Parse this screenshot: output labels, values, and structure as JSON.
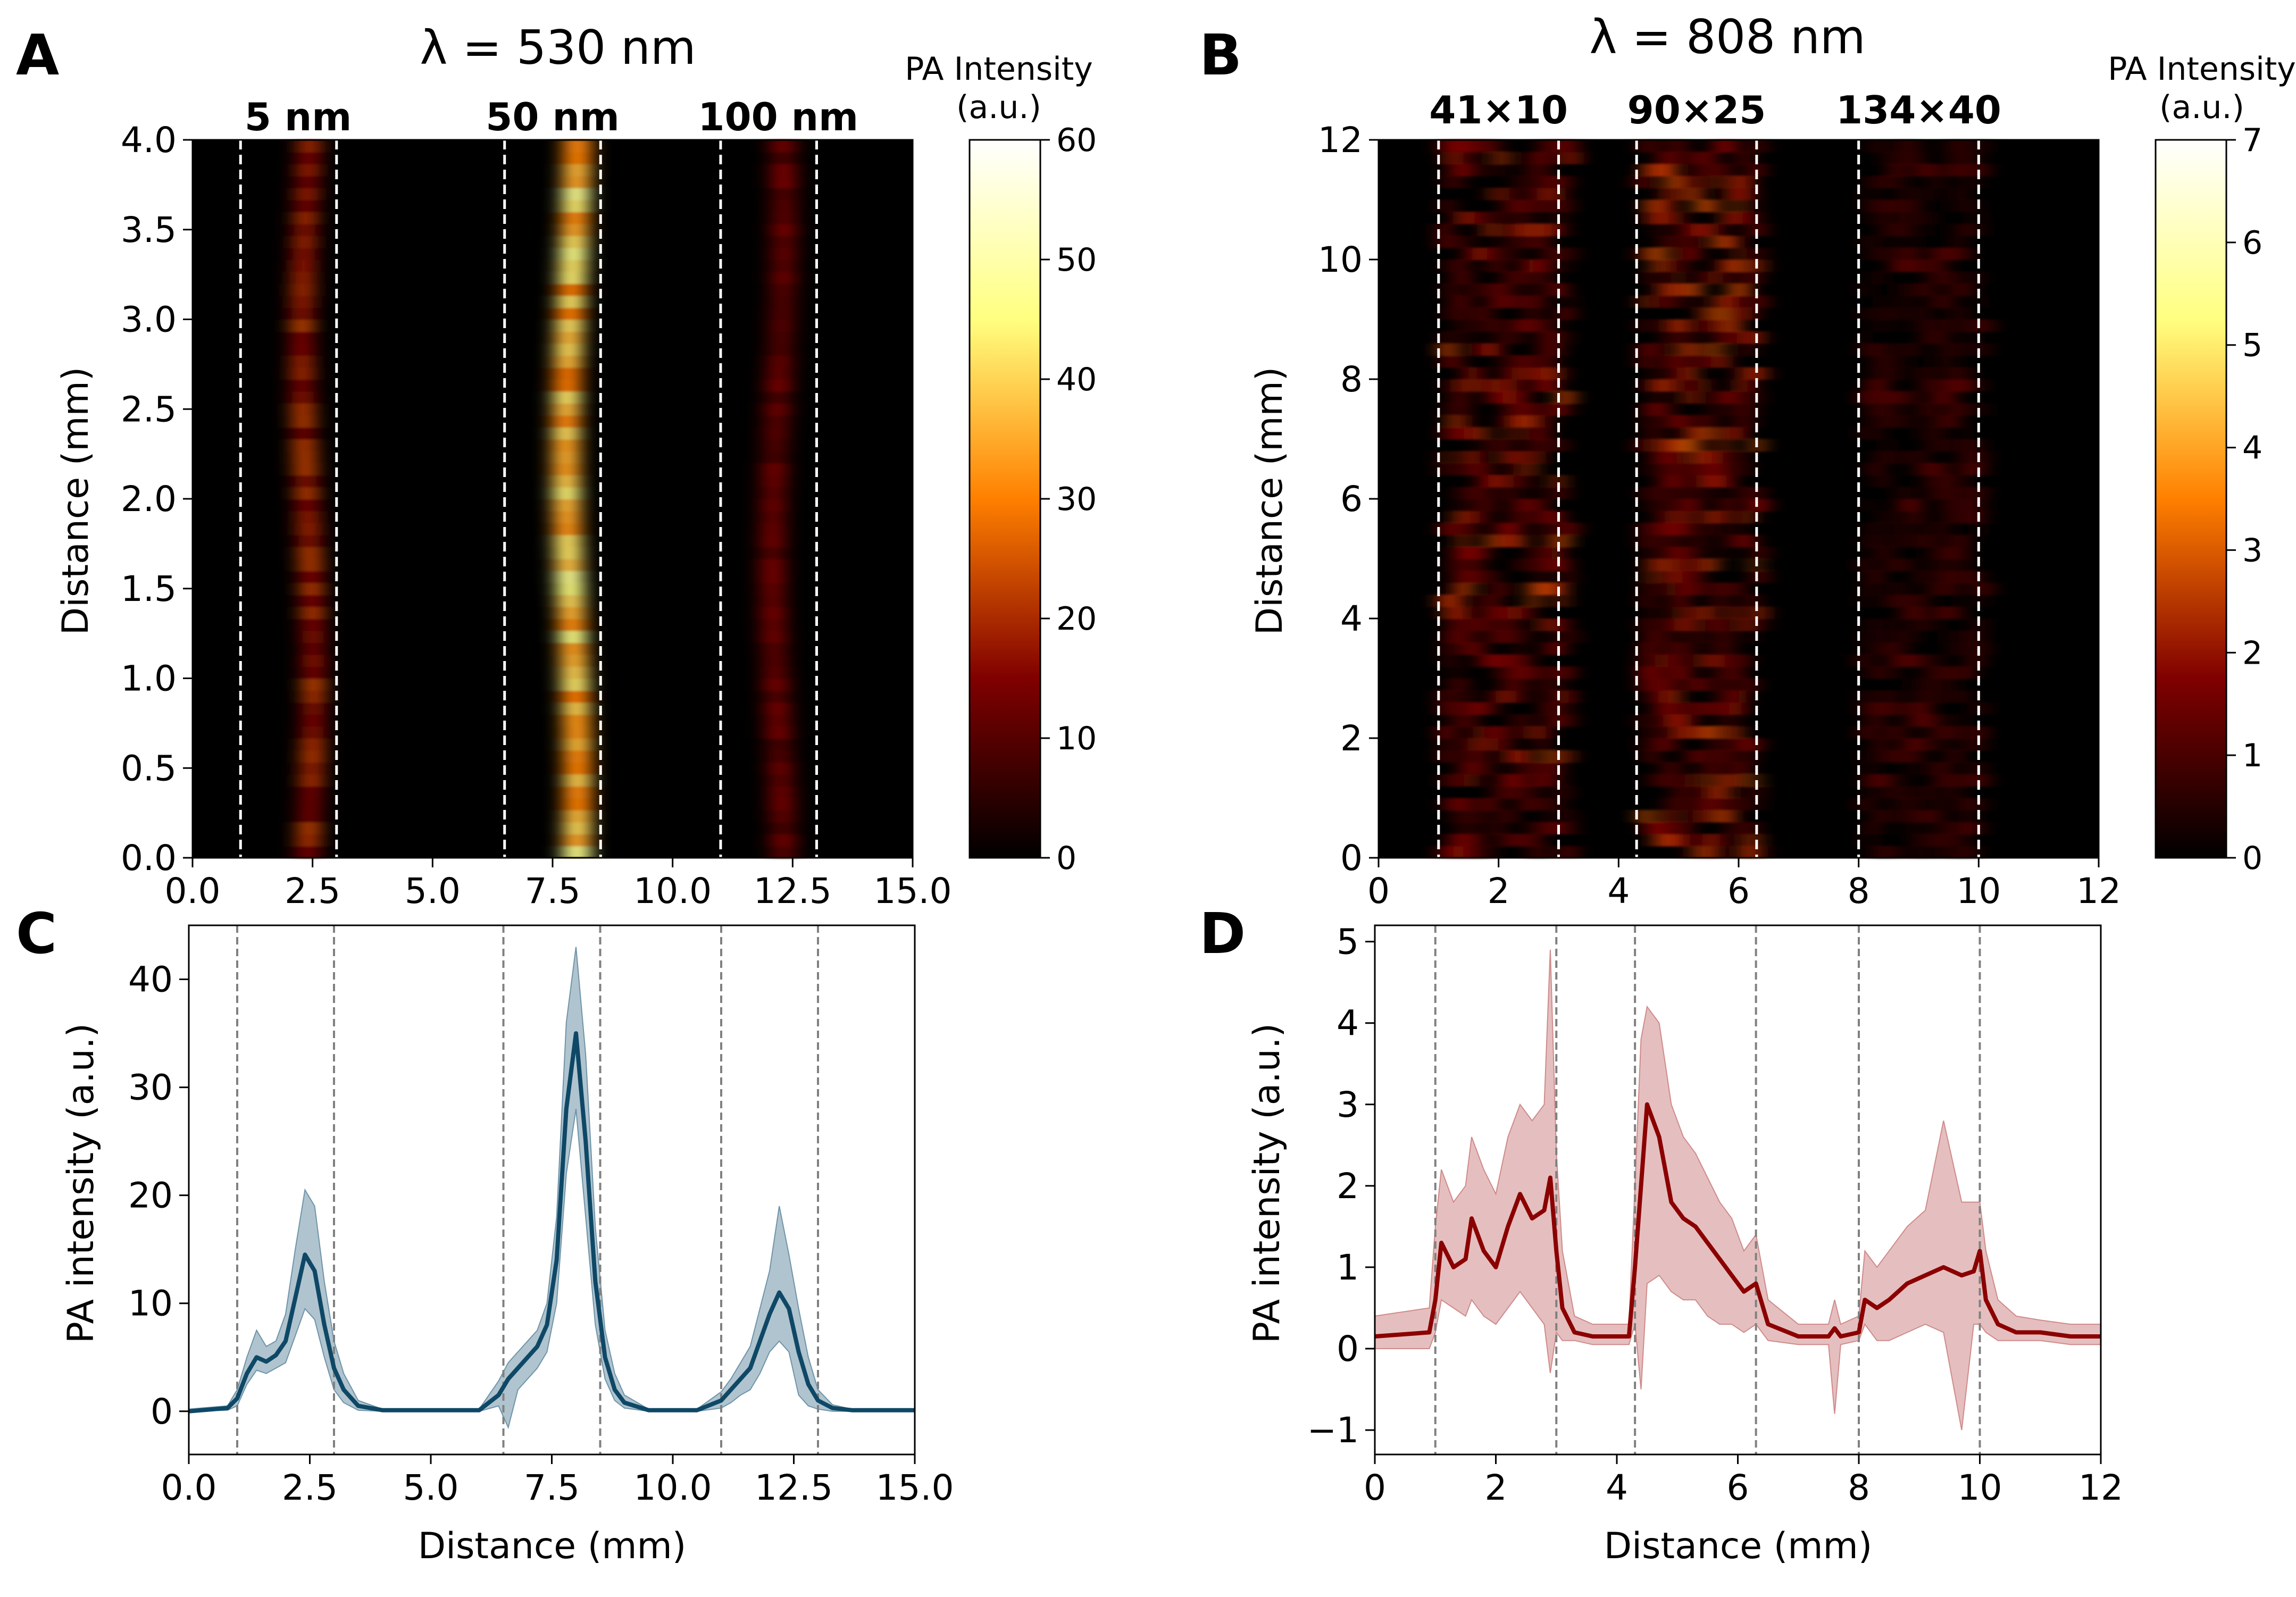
{
  "chart_data": [
    {
      "id": "A",
      "type": "heatmap",
      "panel_label": "A",
      "title": "λ = 530 nm",
      "xlim": [
        0,
        15
      ],
      "ylim": [
        0,
        4
      ],
      "xticks": [
        "0.0",
        "2.5",
        "5.0",
        "7.5",
        "10.0",
        "12.5",
        "15.0"
      ],
      "yticks": [
        "0.0",
        "0.5",
        "1.0",
        "1.5",
        "2.0",
        "2.5",
        "3.0",
        "3.5",
        "4.0"
      ],
      "ylabel": "Distance (mm)",
      "band_labels": [
        "5 nm",
        "50 nm",
        "100 nm"
      ],
      "band_label_x": [
        2.2,
        7.5,
        12.2
      ],
      "dashed_x": [
        1.0,
        3.0,
        6.5,
        8.5,
        11.0,
        13.0
      ],
      "bands": [
        {
          "center": 2.4,
          "width": 0.45,
          "intensity": 18
        },
        {
          "center": 7.9,
          "width": 0.55,
          "intensity": 38
        },
        {
          "center": 12.2,
          "width": 0.5,
          "intensity": 12
        }
      ],
      "colorbar": {
        "label_line1": "PA Intensity",
        "label_line2": "(a.u.)",
        "ticks": [
          "0",
          "10",
          "20",
          "30",
          "40",
          "50",
          "60"
        ],
        "min": 0,
        "max": 60
      }
    },
    {
      "id": "B",
      "type": "heatmap",
      "panel_label": "B",
      "title": "λ = 808 nm",
      "xlim": [
        0,
        12
      ],
      "ylim": [
        0,
        12
      ],
      "xticks": [
        "0",
        "2",
        "4",
        "6",
        "8",
        "10",
        "12"
      ],
      "yticks": [
        "0",
        "2",
        "4",
        "6",
        "8",
        "10",
        "12"
      ],
      "ylabel": "Distance (mm)",
      "band_labels": [
        "41×10",
        "90×25",
        "134×40"
      ],
      "band_label_x": [
        2.0,
        5.3,
        9.0
      ],
      "dashed_x": [
        1.0,
        3.0,
        4.3,
        6.3,
        8.0,
        10.0
      ],
      "bands": [
        {
          "start": 1.0,
          "end": 3.1,
          "intensity": 1.6
        },
        {
          "start": 4.3,
          "end": 6.3,
          "intensity": 2.0
        },
        {
          "start": 8.0,
          "end": 10.0,
          "intensity": 0.9
        }
      ],
      "colorbar": {
        "label_line1": "PA Intensity",
        "label_line2": "(a.u.)",
        "ticks": [
          "0",
          "1",
          "2",
          "3",
          "4",
          "5",
          "6",
          "7"
        ],
        "min": 0,
        "max": 7
      }
    },
    {
      "id": "C",
      "type": "line",
      "panel_label": "C",
      "xlim": [
        0,
        15
      ],
      "ylim": [
        -4,
        45
      ],
      "xticks": [
        "0.0",
        "2.5",
        "5.0",
        "7.5",
        "10.0",
        "12.5",
        "15.0"
      ],
      "yticks": [
        0,
        10,
        20,
        30,
        40
      ],
      "xlabel": "Distance (mm)",
      "ylabel": "PA intensity (a.u.)",
      "dashed_x": [
        1.0,
        3.0,
        6.5,
        8.5,
        11.0,
        13.0
      ],
      "line_color": "#0e4866",
      "band_color": "#6f94a8",
      "series": [
        {
          "name": "mean",
          "x": [
            0,
            0.8,
            1.0,
            1.2,
            1.4,
            1.6,
            1.8,
            2.0,
            2.2,
            2.4,
            2.6,
            2.8,
            3.0,
            3.2,
            3.5,
            4.0,
            5.0,
            6.0,
            6.4,
            6.6,
            6.8,
            7.0,
            7.2,
            7.4,
            7.6,
            7.8,
            8.0,
            8.2,
            8.4,
            8.6,
            8.8,
            9.0,
            9.5,
            10.5,
            11.0,
            11.2,
            11.4,
            11.6,
            11.8,
            12.0,
            12.2,
            12.4,
            12.6,
            12.8,
            13.0,
            13.3,
            13.7,
            15.0
          ],
          "y": [
            0,
            0.3,
            1.2,
            3.5,
            5.0,
            4.6,
            5.2,
            6.5,
            10.5,
            14.5,
            13.0,
            8.0,
            4.0,
            2.0,
            0.5,
            0.1,
            0.1,
            0.1,
            1.5,
            3.0,
            4.0,
            5.0,
            6.0,
            8.0,
            14.0,
            28.0,
            35.0,
            25.0,
            12.0,
            5.0,
            2.0,
            0.8,
            0.1,
            0.1,
            1.0,
            2.0,
            3.0,
            4.0,
            6.5,
            9.0,
            11.0,
            9.5,
            5.5,
            2.5,
            1.0,
            0.3,
            0.1,
            0.1
          ],
          "lower": [
            0,
            0.1,
            0.5,
            2.5,
            3.8,
            3.5,
            4.0,
            4.5,
            7.0,
            9.5,
            8.5,
            5.0,
            2.0,
            0.8,
            0.1,
            0,
            0,
            0,
            0.5,
            -1.5,
            2.0,
            3.0,
            4.0,
            5.5,
            10.0,
            22.0,
            28.0,
            18.0,
            8.0,
            3.0,
            1.0,
            0.3,
            0,
            0,
            0.3,
            0.8,
            1.5,
            2.0,
            3.5,
            5.5,
            6.5,
            5.5,
            1.5,
            0.5,
            0.2,
            0,
            0,
            0
          ],
          "upper": [
            0.2,
            0.5,
            2.0,
            5.0,
            7.5,
            6.0,
            6.5,
            9.0,
            15.0,
            20.5,
            19.0,
            12.0,
            6.5,
            3.5,
            1.0,
            0.2,
            0.2,
            0.2,
            2.8,
            4.5,
            5.5,
            6.5,
            7.5,
            10.0,
            18.0,
            36.0,
            43.0,
            33.0,
            17.0,
            7.5,
            3.5,
            1.5,
            0.2,
            0.2,
            1.8,
            3.0,
            4.5,
            6.0,
            9.5,
            13.0,
            19.0,
            14.5,
            9.5,
            5.0,
            2.0,
            0.6,
            0.2,
            0.2
          ]
        }
      ]
    },
    {
      "id": "D",
      "type": "line",
      "panel_label": "D",
      "xlim": [
        0,
        12
      ],
      "ylim": [
        -1.3,
        5.2
      ],
      "xticks": [
        "0",
        "2",
        "4",
        "6",
        "8",
        "10",
        "12"
      ],
      "yticks": [
        -1,
        0,
        1,
        2,
        3,
        4,
        5
      ],
      "xlabel": "Distance (mm)",
      "ylabel": "PA intensity (a.u.)",
      "dashed_x": [
        1.0,
        3.0,
        4.3,
        6.3,
        8.0,
        10.0
      ],
      "line_color": "#8b0000",
      "band_color": "#d08a8a",
      "series": [
        {
          "name": "mean",
          "x": [
            0,
            0.9,
            1.0,
            1.1,
            1.3,
            1.5,
            1.6,
            1.8,
            2.0,
            2.2,
            2.4,
            2.6,
            2.8,
            2.9,
            3.0,
            3.1,
            3.3,
            3.6,
            4.0,
            4.2,
            4.3,
            4.4,
            4.5,
            4.7,
            4.9,
            5.1,
            5.3,
            5.5,
            5.7,
            5.9,
            6.1,
            6.3,
            6.5,
            7.0,
            7.5,
            7.6,
            7.7,
            8.0,
            8.1,
            8.3,
            8.5,
            8.8,
            9.1,
            9.4,
            9.7,
            9.9,
            10.0,
            10.1,
            10.3,
            10.6,
            11.0,
            11.5,
            12.0
          ],
          "y": [
            0.15,
            0.2,
            0.6,
            1.3,
            1.0,
            1.1,
            1.6,
            1.2,
            1.0,
            1.5,
            1.9,
            1.6,
            1.7,
            2.1,
            1.2,
            0.5,
            0.2,
            0.15,
            0.15,
            0.15,
            1.0,
            2.0,
            3.0,
            2.6,
            1.8,
            1.6,
            1.5,
            1.3,
            1.1,
            0.9,
            0.7,
            0.8,
            0.3,
            0.15,
            0.15,
            0.25,
            0.15,
            0.2,
            0.6,
            0.5,
            0.6,
            0.8,
            0.9,
            1.0,
            0.9,
            0.95,
            1.2,
            0.6,
            0.3,
            0.2,
            0.2,
            0.15,
            0.15
          ],
          "lower": [
            0,
            0,
            0.2,
            0.6,
            0.5,
            0.4,
            0.6,
            0.4,
            0.3,
            0.5,
            0.7,
            0.5,
            0.3,
            -0.3,
            0.2,
            0.1,
            0.1,
            0.05,
            0.05,
            0.05,
            0.3,
            -0.5,
            0.8,
            0.9,
            0.7,
            0.6,
            0.6,
            0.4,
            0.3,
            0.3,
            0.2,
            0.3,
            0.1,
            0.05,
            0.05,
            -0.8,
            0.05,
            0.1,
            0.3,
            0.1,
            0.1,
            0.2,
            0.3,
            0.2,
            -1.0,
            0.3,
            0.3,
            0.2,
            0.1,
            0.1,
            0.1,
            0.05,
            0.05
          ],
          "upper": [
            0.4,
            0.5,
            1.5,
            2.2,
            1.8,
            2.0,
            2.6,
            2.2,
            1.9,
            2.6,
            3.0,
            2.8,
            3.0,
            4.9,
            2.4,
            1.2,
            0.4,
            0.3,
            0.3,
            0.3,
            2.0,
            3.8,
            4.2,
            4.0,
            3.0,
            2.6,
            2.4,
            2.1,
            1.8,
            1.6,
            1.2,
            1.4,
            0.6,
            0.3,
            0.3,
            0.6,
            0.3,
            0.4,
            1.2,
            1.0,
            1.2,
            1.5,
            1.7,
            2.8,
            1.8,
            1.8,
            1.8,
            1.2,
            0.6,
            0.4,
            0.35,
            0.3,
            0.3
          ]
        }
      ]
    }
  ]
}
